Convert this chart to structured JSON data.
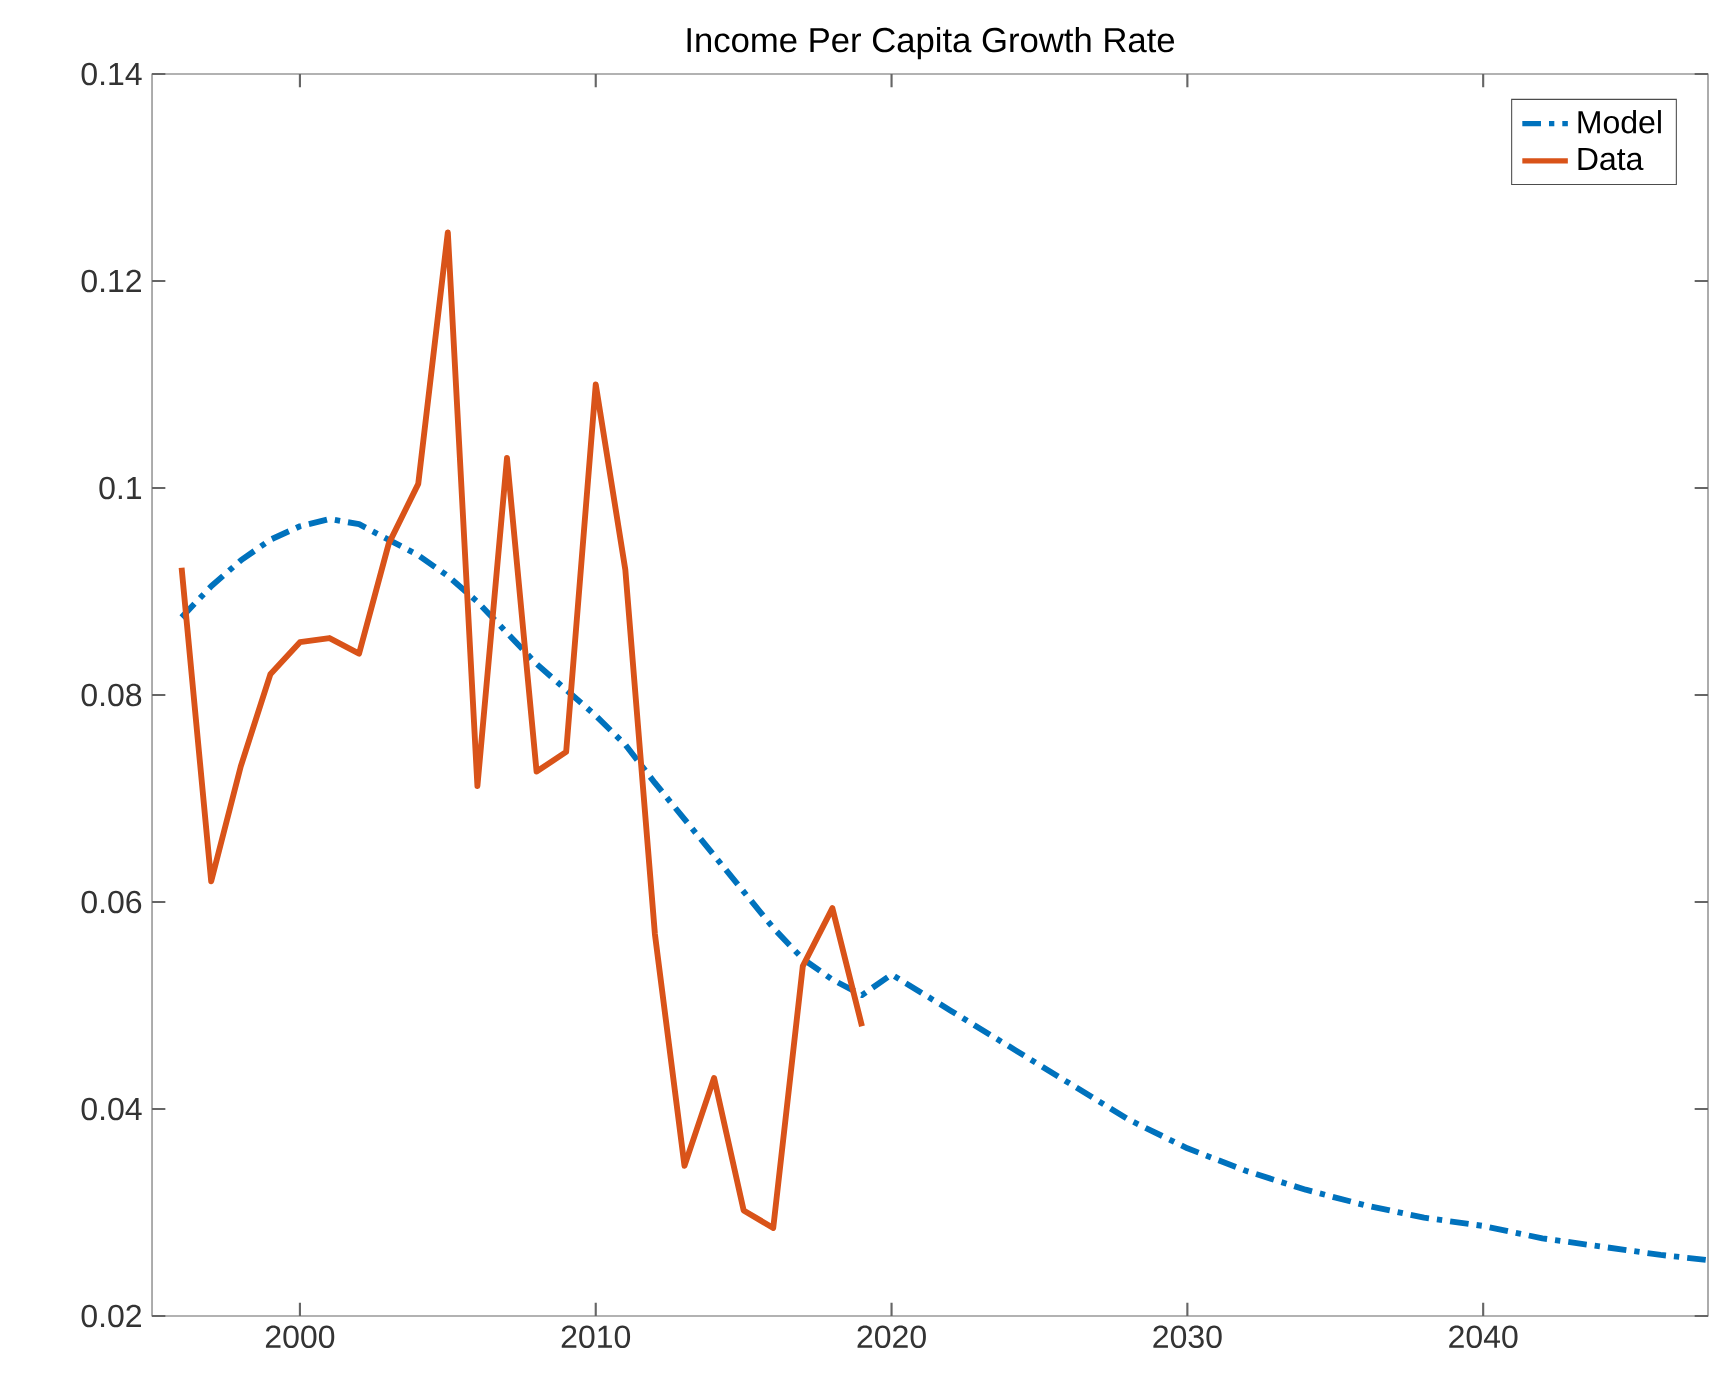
{
  "chart_data": {
    "type": "line",
    "title": "Income Per Capita Growth Rate",
    "xlim": [
      1995,
      2047.6
    ],
    "ylim": [
      0.02,
      0.14
    ],
    "xticks": [
      2000,
      2010,
      2020,
      2030,
      2040
    ],
    "yticks": [
      0.02,
      0.04,
      0.06,
      0.08,
      0.1,
      0.12,
      0.14
    ],
    "legend": "top right",
    "series": [
      {
        "name": "Model",
        "color": "#0072bd",
        "line_style": "dashed",
        "x": [
          1996,
          1997,
          1998,
          1999,
          2000,
          2001,
          2002,
          2003,
          2004,
          2005,
          2006,
          2007,
          2008,
          2009,
          2010,
          2011,
          2012,
          2013,
          2014,
          2015,
          2016,
          2017,
          2018,
          2019,
          2020,
          2022,
          2024,
          2026,
          2028,
          2030,
          2032,
          2034,
          2036,
          2038,
          2040,
          2042,
          2044,
          2046,
          2047.6
        ],
        "values": [
          0.0875,
          0.0905,
          0.093,
          0.095,
          0.0963,
          0.097,
          0.0965,
          0.095,
          0.0935,
          0.0915,
          0.089,
          0.086,
          0.083,
          0.0805,
          0.078,
          0.0752,
          0.0715,
          0.068,
          0.0645,
          0.061,
          0.0575,
          0.0545,
          0.0525,
          0.051,
          0.053,
          0.0495,
          0.046,
          0.0425,
          0.039,
          0.0362,
          0.034,
          0.0322,
          0.0307,
          0.0295,
          0.0287,
          0.0275,
          0.0267,
          0.0259,
          0.0254
        ]
      },
      {
        "name": "Data",
        "color": "#d95319",
        "line_style": "solid",
        "x": [
          1996,
          1997,
          1998,
          1999,
          2000,
          2001,
          2002,
          2003,
          2004,
          2005,
          2006,
          2007,
          2008,
          2009,
          2010,
          2011,
          2012,
          2013,
          2014,
          2015,
          2016,
          2017,
          2018,
          2019
        ],
        "values": [
          0.0923,
          0.062,
          0.0731,
          0.082,
          0.0851,
          0.0855,
          0.084,
          0.0946,
          0.1004,
          0.1247,
          0.0712,
          0.1029,
          0.0726,
          0.0745,
          0.11,
          0.0921,
          0.0569,
          0.0345,
          0.043,
          0.0302,
          0.0285,
          0.0538,
          0.0594,
          0.048
        ]
      }
    ]
  }
}
